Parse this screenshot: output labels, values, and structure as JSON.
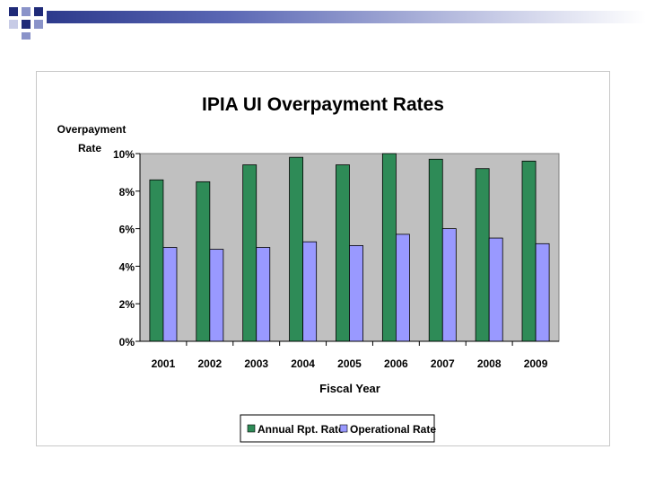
{
  "colors": {
    "deco_dark": "#1f2a78",
    "deco_light": "#8a93c9",
    "annual": "#2e8b57",
    "operational": "#9999ff",
    "plot_bg": "#c0c0c0"
  },
  "chart_data": {
    "type": "bar",
    "title": "IPIA UI Overpayment Rates",
    "xlabel": "Fiscal Year",
    "ylabel_line1": "Overpayment",
    "ylabel_line2": "Rate",
    "categories": [
      "2001",
      "2002",
      "2003",
      "2004",
      "2005",
      "2006",
      "2007",
      "2008",
      "2009"
    ],
    "ylim": [
      0,
      10
    ],
    "yticks": [
      0,
      2,
      4,
      6,
      8,
      10
    ],
    "ytick_labels": [
      "0%",
      "2%",
      "4%",
      "6%",
      "8%",
      "10%"
    ],
    "grid": false,
    "legend_position": "bottom",
    "series": [
      {
        "name": "Annual Rpt. Rate",
        "values": [
          8.6,
          8.5,
          9.4,
          9.8,
          9.4,
          10.0,
          9.7,
          9.2,
          9.6
        ]
      },
      {
        "name": "Operational Rate",
        "values": [
          5.0,
          4.9,
          5.0,
          5.3,
          5.1,
          5.7,
          6.0,
          5.5,
          5.2
        ]
      }
    ]
  }
}
